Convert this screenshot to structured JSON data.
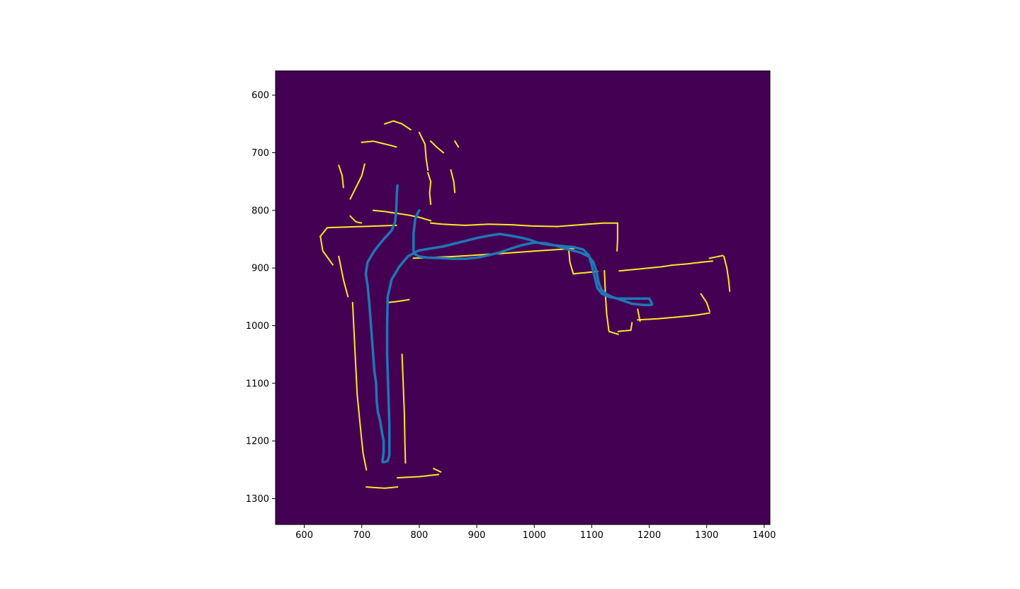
{
  "colors": {
    "background": "#440154",
    "occupied": "#fde725",
    "trajectory": "#1f77b4",
    "axis": "#000000",
    "figure": "#ffffff"
  },
  "chart_data": {
    "type": "heatmap",
    "title": "",
    "xlabel": "",
    "ylabel": "",
    "xlim": [
      550,
      1410
    ],
    "ylim": [
      1345,
      558
    ],
    "y_inverted": true,
    "grid": false,
    "legend": "none",
    "x_ticks": [
      600,
      700,
      800,
      900,
      1000,
      1100,
      1200,
      1300,
      1400
    ],
    "y_ticks": [
      600,
      700,
      800,
      900,
      1000,
      1100,
      1200,
      1300
    ],
    "occupancy_walls": [
      [
        [
          628,
          845
        ],
        [
          640,
          830
        ],
        [
          700,
          828
        ],
        [
          760,
          826
        ]
      ],
      [
        [
          628,
          845
        ],
        [
          632,
          870
        ],
        [
          650,
          895
        ]
      ],
      [
        [
          660,
          880
        ],
        [
          668,
          920
        ],
        [
          676,
          950
        ]
      ],
      [
        [
          684,
          960
        ],
        [
          688,
          1040
        ],
        [
          692,
          1120
        ],
        [
          698,
          1180
        ],
        [
          702,
          1220
        ],
        [
          708,
          1250
        ]
      ],
      [
        [
          708,
          1280
        ],
        [
          740,
          1282
        ],
        [
          762,
          1280
        ]
      ],
      [
        [
          762,
          1264
        ],
        [
          800,
          1262
        ],
        [
          835,
          1258
        ]
      ],
      [
        [
          770,
          1050
        ],
        [
          772,
          1100
        ],
        [
          774,
          1150
        ],
        [
          775,
          1200
        ],
        [
          776,
          1238
        ]
      ],
      [
        [
          744,
          960
        ],
        [
          762,
          958
        ],
        [
          782,
          955
        ]
      ],
      [
        [
          790,
          883
        ],
        [
          860,
          880
        ],
        [
          940,
          875
        ],
        [
          1010,
          870
        ],
        [
          1070,
          866
        ]
      ],
      [
        [
          1040,
          828
        ],
        [
          1080,
          825
        ],
        [
          1120,
          822
        ],
        [
          1145,
          822
        ]
      ],
      [
        [
          1145,
          822
        ],
        [
          1145,
          850
        ],
        [
          1144,
          870
        ]
      ],
      [
        [
          1060,
          868
        ],
        [
          1062,
          890
        ],
        [
          1068,
          910
        ]
      ],
      [
        [
          1068,
          910
        ],
        [
          1090,
          908
        ],
        [
          1110,
          906
        ]
      ],
      [
        [
          1122,
          905
        ],
        [
          1124,
          950
        ],
        [
          1126,
          980
        ],
        [
          1130,
          1010
        ],
        [
          1146,
          1015
        ]
      ],
      [
        [
          1146,
          1010
        ],
        [
          1168,
          1008
        ],
        [
          1170,
          995
        ]
      ],
      [
        [
          1148,
          905
        ],
        [
          1180,
          902
        ],
        [
          1200,
          900
        ],
        [
          1220,
          898
        ],
        [
          1240,
          895
        ],
        [
          1265,
          893
        ],
        [
          1290,
          890
        ],
        [
          1310,
          888
        ]
      ],
      [
        [
          1305,
          883
        ],
        [
          1320,
          880
        ],
        [
          1330,
          878
        ]
      ],
      [
        [
          1330,
          880
        ],
        [
          1335,
          900
        ],
        [
          1338,
          920
        ],
        [
          1340,
          940
        ]
      ],
      [
        [
          1290,
          945
        ],
        [
          1300,
          960
        ],
        [
          1305,
          975
        ]
      ],
      [
        [
          1180,
          990
        ],
        [
          1215,
          988
        ],
        [
          1250,
          985
        ],
        [
          1280,
          982
        ],
        [
          1305,
          978
        ]
      ],
      [
        [
          1180,
          972
        ],
        [
          1182,
          982
        ],
        [
          1184,
          992
        ]
      ],
      [
        [
          820,
          822
        ],
        [
          840,
          824
        ],
        [
          880,
          826
        ],
        [
          920,
          824
        ],
        [
          960,
          825
        ],
        [
          995,
          827
        ],
        [
          1040,
          828
        ]
      ],
      [
        [
          720,
          800
        ],
        [
          740,
          802
        ],
        [
          760,
          805
        ],
        [
          780,
          808
        ],
        [
          800,
          812
        ],
        [
          820,
          818
        ]
      ],
      [
        [
          825,
          1248
        ],
        [
          838,
          1254
        ]
      ],
      [
        [
          680,
          780
        ],
        [
          690,
          760
        ],
        [
          700,
          740
        ],
        [
          705,
          720
        ]
      ],
      [
        [
          660,
          722
        ],
        [
          666,
          740
        ],
        [
          668,
          760
        ]
      ],
      [
        [
          700,
          682
        ],
        [
          720,
          680
        ],
        [
          745,
          686
        ],
        [
          760,
          690
        ]
      ],
      [
        [
          740,
          650
        ],
        [
          755,
          645
        ],
        [
          770,
          650
        ],
        [
          785,
          660
        ]
      ],
      [
        [
          800,
          665
        ],
        [
          810,
          685
        ],
        [
          812,
          710
        ],
        [
          815,
          730
        ]
      ],
      [
        [
          820,
          680
        ],
        [
          830,
          690
        ],
        [
          842,
          700
        ]
      ],
      [
        [
          815,
          735
        ],
        [
          820,
          750
        ],
        [
          818,
          770
        ],
        [
          820,
          790
        ]
      ],
      [
        [
          855,
          730
        ],
        [
          860,
          750
        ],
        [
          862,
          770
        ]
      ],
      [
        [
          862,
          680
        ],
        [
          868,
          690
        ]
      ],
      [
        [
          680,
          810
        ],
        [
          690,
          820
        ],
        [
          700,
          822
        ]
      ]
    ],
    "trajectory": {
      "x": [
        762,
        761,
        760,
        758,
        752,
        738,
        722,
        710,
        707,
        710,
        713,
        716,
        719,
        722,
        725,
        726,
        728,
        732,
        735,
        738,
        738,
        736,
        736,
        738,
        745,
        748,
        748,
        748,
        747,
        746,
        745,
        744,
        744,
        745,
        752,
        765,
        780,
        798,
        820,
        840,
        860,
        880,
        900,
        920,
        940,
        960,
        980,
        995,
        1005,
        1015,
        1030,
        1050,
        1070,
        1085,
        1095,
        1100,
        1105,
        1110,
        1118,
        1130,
        1145,
        1160,
        1175,
        1190,
        1200,
        1203,
        1205,
        1203,
        1190,
        1170,
        1150,
        1135,
        1125,
        1117,
        1112,
        1108,
        1103,
        1095,
        1080,
        1060,
        1040,
        1020,
        1000,
        980,
        960,
        940,
        920,
        900,
        880,
        860,
        840,
        815,
        800,
        792,
        790,
        790,
        790,
        793,
        797,
        800
      ],
      "y": [
        757,
        770,
        800,
        820,
        835,
        850,
        870,
        890,
        910,
        930,
        960,
        1000,
        1040,
        1080,
        1100,
        1130,
        1150,
        1165,
        1185,
        1200,
        1220,
        1235,
        1236,
        1237,
        1235,
        1225,
        1200,
        1170,
        1140,
        1110,
        1080,
        1050,
        1000,
        950,
        920,
        898,
        880,
        870,
        866,
        863,
        858,
        853,
        848,
        844,
        841,
        844,
        848,
        852,
        856,
        858,
        860,
        862,
        864,
        868,
        878,
        895,
        915,
        935,
        945,
        950,
        953,
        953,
        953,
        953,
        953,
        958,
        963,
        964,
        964,
        962,
        955,
        950,
        945,
        938,
        925,
        905,
        890,
        880,
        873,
        868,
        862,
        857,
        856,
        860,
        866,
        873,
        878,
        882,
        884,
        884,
        883,
        882,
        880,
        876,
        870,
        856,
        840,
        815,
        805,
        800
      ]
    }
  }
}
